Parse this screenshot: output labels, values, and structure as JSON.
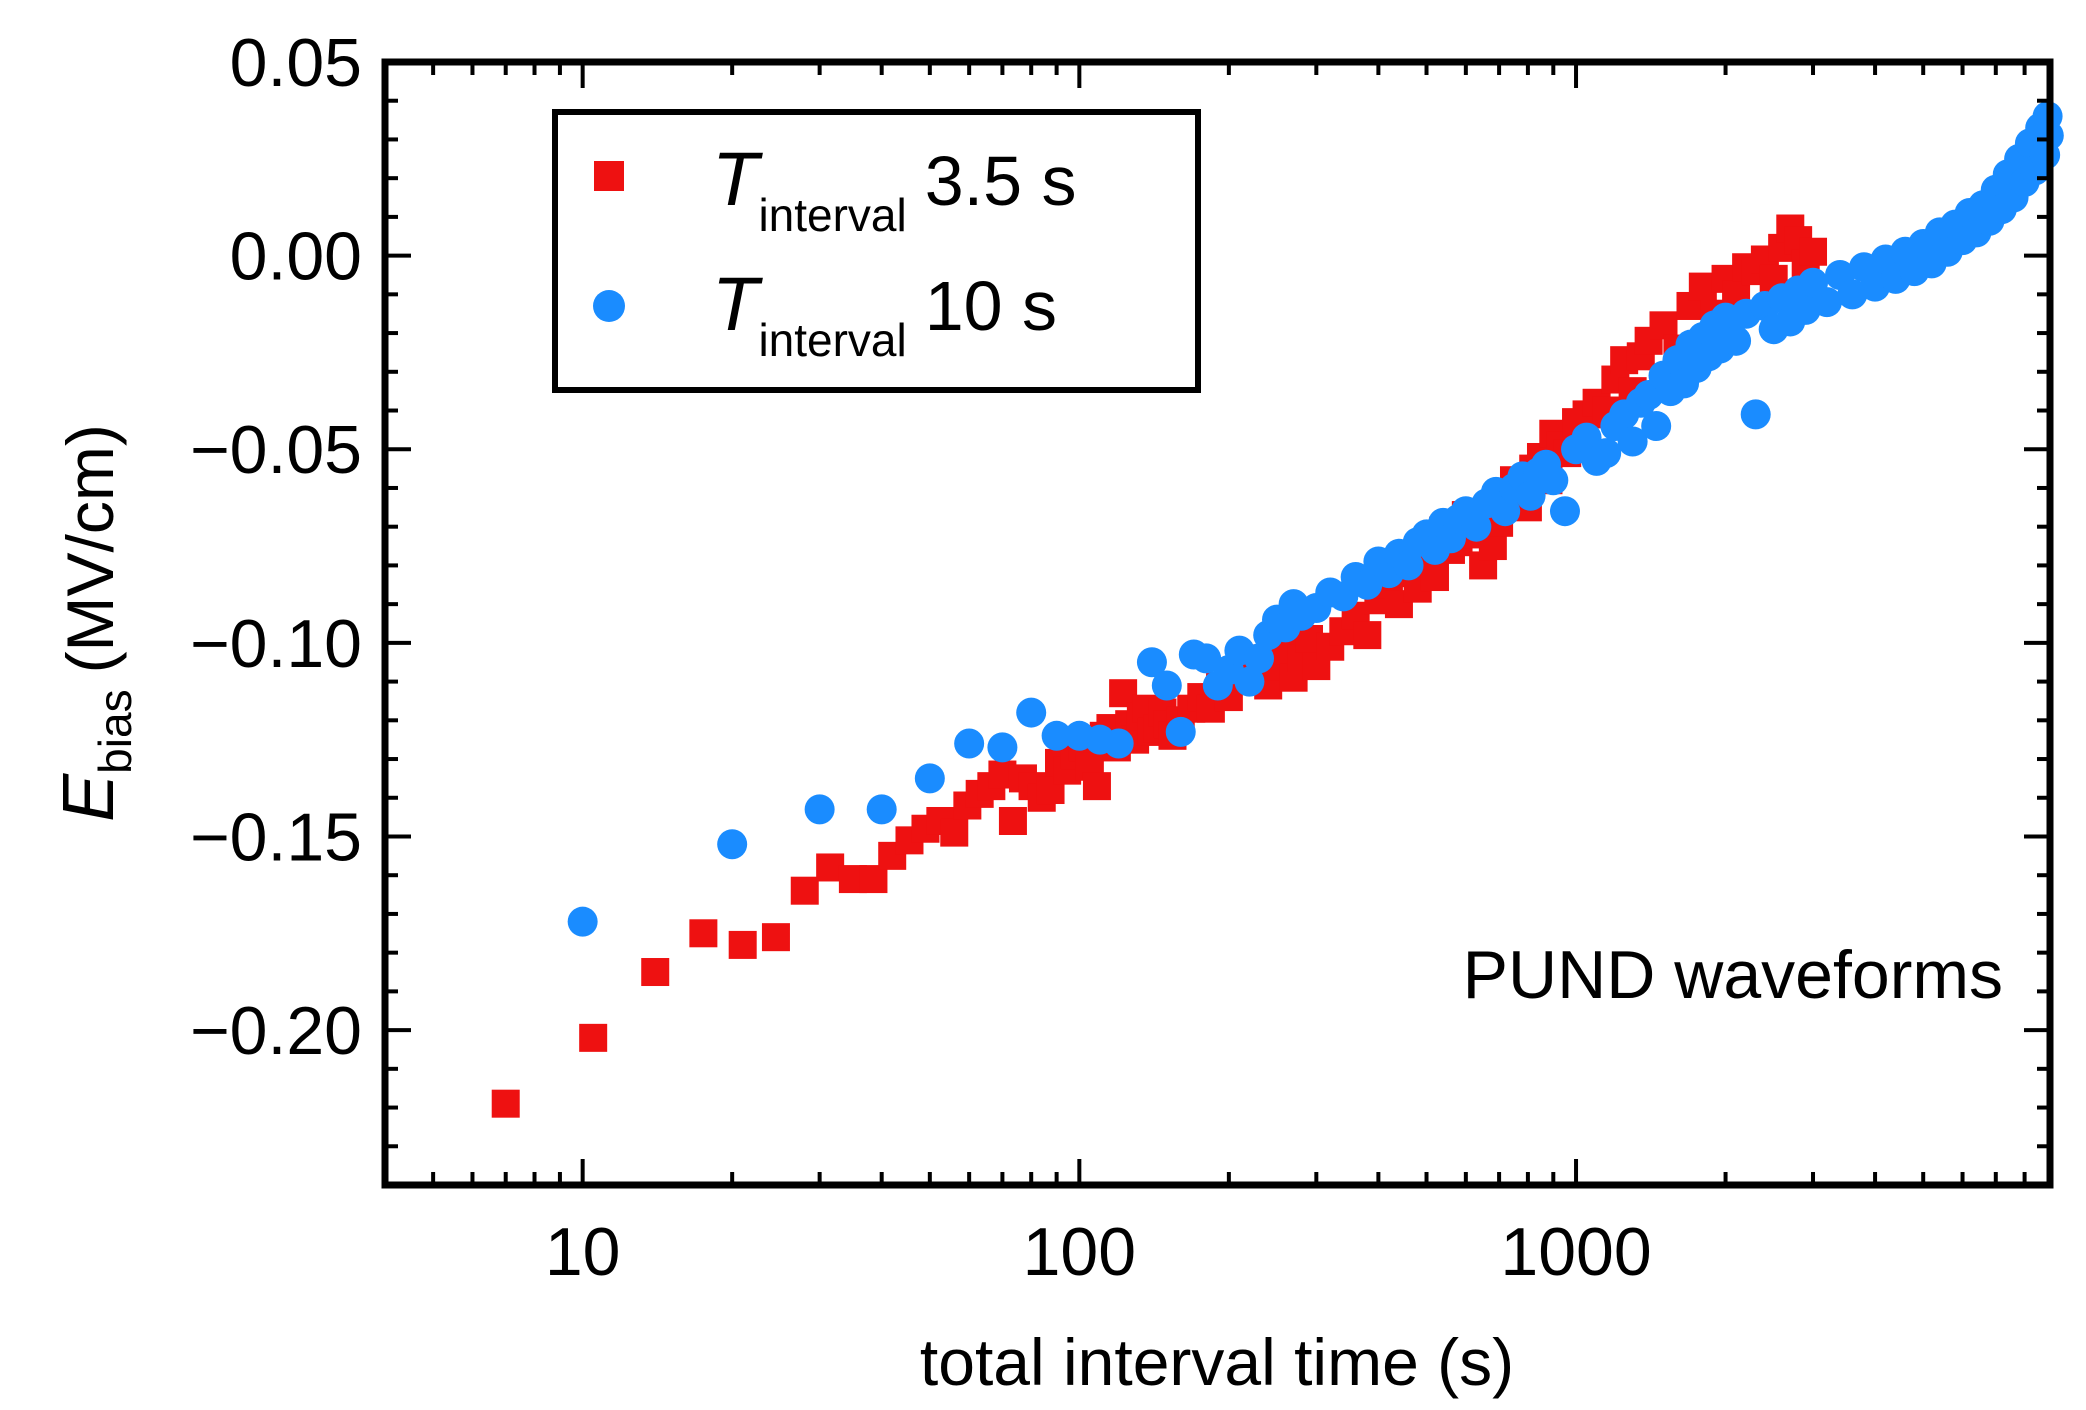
{
  "chart_data": {
    "type": "scatter",
    "title": "",
    "xlabel": "total interval time (s)",
    "ylabel": {
      "symbol": "E",
      "subscript": "bias",
      "unit": "(MV/cm)"
    },
    "xscale": "log",
    "xlim": [
      4,
      9000
    ],
    "ylim": [
      -0.24,
      0.05
    ],
    "x_tick_labels": [
      {
        "value": 10,
        "label": "10"
      },
      {
        "value": 100,
        "label": "100"
      },
      {
        "value": 1000,
        "label": "1000"
      }
    ],
    "y_tick_labels": [
      {
        "value": 0.05,
        "label": "0.05"
      },
      {
        "value": 0.0,
        "label": "0.00"
      },
      {
        "value": -0.05,
        "label": "−0.05"
      },
      {
        "value": -0.1,
        "label": "−0.10"
      },
      {
        "value": -0.15,
        "label": "−0.15"
      },
      {
        "value": -0.2,
        "label": "−0.20"
      }
    ],
    "legend_position": "top-left",
    "annotation": "PUND waveforms",
    "series": [
      {
        "name_symbol": "T",
        "name_subscript": "interval",
        "name_value": "3.5 s",
        "marker": "square",
        "color": "#ee1111",
        "points": [
          [
            7,
            -0.219
          ],
          [
            10.5,
            -0.202
          ],
          [
            14,
            -0.185
          ],
          [
            17.5,
            -0.175
          ],
          [
            21,
            -0.178
          ],
          [
            24.5,
            -0.176
          ],
          [
            28,
            -0.164
          ],
          [
            31.5,
            -0.158
          ],
          [
            35,
            -0.161
          ],
          [
            38.5,
            -0.161
          ],
          [
            42,
            -0.155
          ],
          [
            45.5,
            -0.151
          ],
          [
            49,
            -0.148
          ],
          [
            52.5,
            -0.146
          ],
          [
            56,
            -0.149
          ],
          [
            59.5,
            -0.142
          ],
          [
            63,
            -0.139
          ],
          [
            66.5,
            -0.137
          ],
          [
            70,
            -0.134
          ],
          [
            73.5,
            -0.146
          ],
          [
            77,
            -0.135
          ],
          [
            80.5,
            -0.137
          ],
          [
            84,
            -0.14
          ],
          [
            87.5,
            -0.138
          ],
          [
            91,
            -0.131
          ],
          [
            94.5,
            -0.133
          ],
          [
            98,
            -0.129
          ],
          [
            101.5,
            -0.127
          ],
          [
            105,
            -0.132
          ],
          [
            108.5,
            -0.137
          ],
          [
            112,
            -0.124
          ],
          [
            115.5,
            -0.122
          ],
          [
            119,
            -0.127
          ],
          [
            122.5,
            -0.113
          ],
          [
            126,
            -0.121
          ],
          [
            129.5,
            -0.125
          ],
          [
            133,
            -0.119
          ],
          [
            136.5,
            -0.117
          ],
          [
            140,
            -0.123
          ],
          [
            143.5,
            -0.122
          ],
          [
            147,
            -0.118
          ],
          [
            150.5,
            -0.121
          ],
          [
            154,
            -0.124
          ],
          [
            160,
            -0.12
          ],
          [
            168,
            -0.117
          ],
          [
            176,
            -0.114
          ],
          [
            184,
            -0.117
          ],
          [
            192,
            -0.111
          ],
          [
            200,
            -0.114
          ],
          [
            210,
            -0.108
          ],
          [
            220,
            -0.104
          ],
          [
            230,
            -0.109
          ],
          [
            240,
            -0.111
          ],
          [
            250,
            -0.106
          ],
          [
            260,
            -0.102
          ],
          [
            270,
            -0.109
          ],
          [
            280,
            -0.104
          ],
          [
            290,
            -0.099
          ],
          [
            300,
            -0.106
          ],
          [
            320,
            -0.101
          ],
          [
            340,
            -0.097
          ],
          [
            360,
            -0.093
          ],
          [
            380,
            -0.098
          ],
          [
            400,
            -0.089
          ],
          [
            420,
            -0.085
          ],
          [
            440,
            -0.09
          ],
          [
            460,
            -0.082
          ],
          [
            480,
            -0.086
          ],
          [
            500,
            -0.079
          ],
          [
            520,
            -0.083
          ],
          [
            540,
            -0.071
          ],
          [
            560,
            -0.076
          ],
          [
            580,
            -0.074
          ],
          [
            600,
            -0.067
          ],
          [
            620,
            -0.072
          ],
          [
            650,
            -0.08
          ],
          [
            680,
            -0.075
          ],
          [
            700,
            -0.069
          ],
          [
            720,
            -0.063
          ],
          [
            750,
            -0.058
          ],
          [
            780,
            -0.061
          ],
          [
            800,
            -0.065
          ],
          [
            820,
            -0.055
          ],
          [
            850,
            -0.052
          ],
          [
            880,
            -0.058
          ],
          [
            900,
            -0.046
          ],
          [
            930,
            -0.049
          ],
          [
            960,
            -0.051
          ],
          [
            1000,
            -0.043
          ],
          [
            1050,
            -0.041
          ],
          [
            1100,
            -0.038
          ],
          [
            1150,
            -0.04
          ],
          [
            1200,
            -0.032
          ],
          [
            1250,
            -0.027
          ],
          [
            1300,
            -0.035
          ],
          [
            1350,
            -0.026
          ],
          [
            1400,
            -0.022
          ],
          [
            1500,
            -0.018
          ],
          [
            1600,
            -0.024
          ],
          [
            1700,
            -0.013
          ],
          [
            1800,
            -0.008
          ],
          [
            1900,
            -0.015
          ],
          [
            2000,
            -0.006
          ],
          [
            2100,
            -0.01
          ],
          [
            2200,
            -0.003
          ],
          [
            2300,
            -0.004
          ],
          [
            2400,
            -0.001
          ],
          [
            2500,
            -0.006
          ],
          [
            2600,
            0.002
          ],
          [
            2700,
            0.007
          ],
          [
            2800,
            0.004
          ],
          [
            2900,
            -0.002
          ],
          [
            3000,
            0.001
          ]
        ]
      },
      {
        "name_symbol": "T",
        "name_subscript": "interval",
        "name_value": "10 s",
        "marker": "circle",
        "color": "#1a8cff",
        "points": [
          [
            10,
            -0.172
          ],
          [
            20,
            -0.152
          ],
          [
            30,
            -0.143
          ],
          [
            40,
            -0.143
          ],
          [
            50,
            -0.135
          ],
          [
            60,
            -0.126
          ],
          [
            70,
            -0.127
          ],
          [
            80,
            -0.118
          ],
          [
            90,
            -0.124
          ],
          [
            100,
            -0.124
          ],
          [
            110,
            -0.125
          ],
          [
            120,
            -0.126
          ],
          [
            140,
            -0.105
          ],
          [
            150,
            -0.111
          ],
          [
            160,
            -0.123
          ],
          [
            170,
            -0.103
          ],
          [
            180,
            -0.104
          ],
          [
            190,
            -0.111
          ],
          [
            200,
            -0.107
          ],
          [
            210,
            -0.102
          ],
          [
            220,
            -0.11
          ],
          [
            230,
            -0.104
          ],
          [
            240,
            -0.098
          ],
          [
            250,
            -0.094
          ],
          [
            260,
            -0.096
          ],
          [
            270,
            -0.09
          ],
          [
            280,
            -0.093
          ],
          [
            300,
            -0.091
          ],
          [
            320,
            -0.087
          ],
          [
            340,
            -0.088
          ],
          [
            360,
            -0.083
          ],
          [
            380,
            -0.085
          ],
          [
            400,
            -0.079
          ],
          [
            420,
            -0.082
          ],
          [
            440,
            -0.077
          ],
          [
            460,
            -0.08
          ],
          [
            480,
            -0.074
          ],
          [
            500,
            -0.072
          ],
          [
            520,
            -0.076
          ],
          [
            540,
            -0.069
          ],
          [
            560,
            -0.073
          ],
          [
            580,
            -0.068
          ],
          [
            600,
            -0.066
          ],
          [
            630,
            -0.07
          ],
          [
            660,
            -0.064
          ],
          [
            690,
            -0.061
          ],
          [
            720,
            -0.066
          ],
          [
            750,
            -0.06
          ],
          [
            780,
            -0.057
          ],
          [
            810,
            -0.062
          ],
          [
            840,
            -0.056
          ],
          [
            870,
            -0.054
          ],
          [
            900,
            -0.058
          ],
          [
            950,
            -0.066
          ],
          [
            1000,
            -0.05
          ],
          [
            1050,
            -0.047
          ],
          [
            1100,
            -0.053
          ],
          [
            1150,
            -0.051
          ],
          [
            1200,
            -0.044
          ],
          [
            1250,
            -0.041
          ],
          [
            1300,
            -0.048
          ],
          [
            1350,
            -0.038
          ],
          [
            1400,
            -0.036
          ],
          [
            1450,
            -0.044
          ],
          [
            1500,
            -0.031
          ],
          [
            1550,
            -0.035
          ],
          [
            1600,
            -0.027
          ],
          [
            1650,
            -0.033
          ],
          [
            1700,
            -0.023
          ],
          [
            1750,
            -0.029
          ],
          [
            1800,
            -0.021
          ],
          [
            1850,
            -0.026
          ],
          [
            1900,
            -0.018
          ],
          [
            1950,
            -0.024
          ],
          [
            2000,
            -0.016
          ],
          [
            2100,
            -0.022
          ],
          [
            2200,
            -0.015
          ],
          [
            2300,
            -0.041
          ],
          [
            2400,
            -0.013
          ],
          [
            2500,
            -0.019
          ],
          [
            2600,
            -0.011
          ],
          [
            2700,
            -0.017
          ],
          [
            2800,
            -0.009
          ],
          [
            2900,
            -0.014
          ],
          [
            3000,
            -0.007
          ],
          [
            3200,
            -0.012
          ],
          [
            3400,
            -0.005
          ],
          [
            3600,
            -0.01
          ],
          [
            3800,
            -0.003
          ],
          [
            4000,
            -0.008
          ],
          [
            4200,
            -0.001
          ],
          [
            4400,
            -0.006
          ],
          [
            4600,
            0.001
          ],
          [
            4800,
            -0.004
          ],
          [
            5000,
            0.003
          ],
          [
            5200,
            -0.002
          ],
          [
            5400,
            0.006
          ],
          [
            5600,
            0.001
          ],
          [
            5800,
            0.008
          ],
          [
            6000,
            0.004
          ],
          [
            6200,
            0.011
          ],
          [
            6400,
            0.006
          ],
          [
            6600,
            0.013
          ],
          [
            6800,
            0.009
          ],
          [
            7000,
            0.017
          ],
          [
            7200,
            0.012
          ],
          [
            7400,
            0.021
          ],
          [
            7600,
            0.015
          ],
          [
            7800,
            0.025
          ],
          [
            8000,
            0.019
          ],
          [
            8200,
            0.029
          ],
          [
            8400,
            0.022
          ],
          [
            8600,
            0.033
          ],
          [
            8800,
            0.026
          ],
          [
            8900,
            0.036
          ],
          [
            8950,
            0.031
          ]
        ]
      }
    ]
  }
}
